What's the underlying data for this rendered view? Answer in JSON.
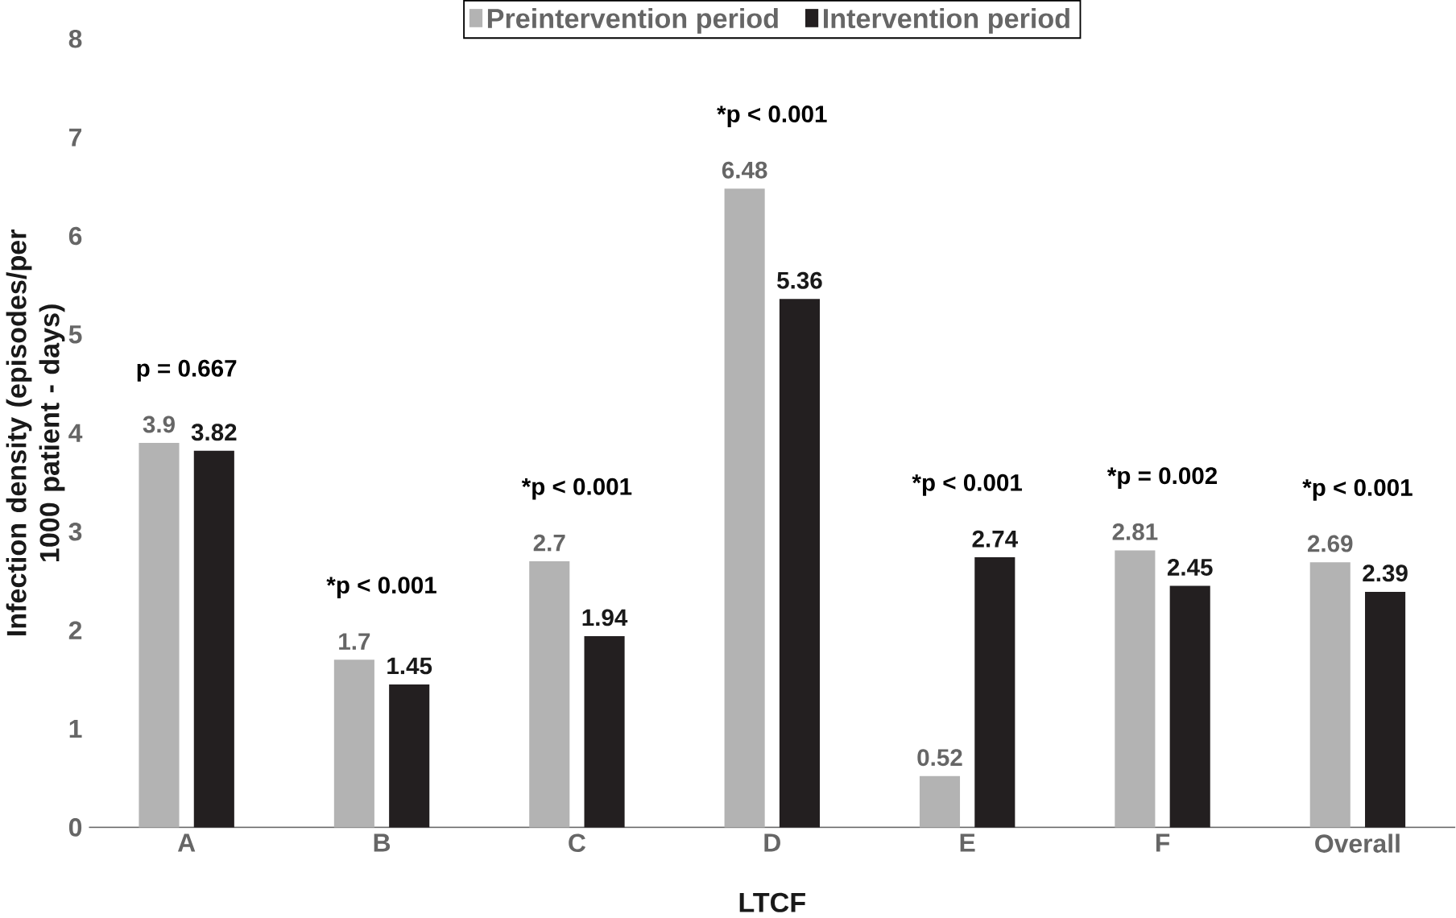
{
  "chart_data": {
    "type": "bar",
    "xlabel": "LTCF",
    "ylabel": "Infection density (episodes/per 1000 patient - days)",
    "categories": [
      "A",
      "B",
      "C",
      "D",
      "E",
      "F",
      "Overall"
    ],
    "series": [
      {
        "name": "Preintervention period",
        "color": "#b3b3b3",
        "values": [
          3.9,
          1.7,
          2.7,
          6.48,
          0.52,
          2.81,
          2.69
        ]
      },
      {
        "name": "Intervention period",
        "color": "#231f20",
        "values": [
          3.82,
          1.45,
          1.94,
          5.36,
          2.74,
          2.45,
          2.39
        ]
      }
    ],
    "ylim": [
      0,
      8
    ],
    "yticks": [
      0,
      1,
      2,
      3,
      4,
      5,
      6,
      7,
      8
    ],
    "data_labels": true,
    "legend": "top",
    "grid": false,
    "annotations": [
      "p = 0.667",
      "*p < 0.001",
      "*p < 0.001",
      "*p < 0.001",
      "*p < 0.001",
      "*p = 0.002",
      "*p < 0.001"
    ]
  }
}
